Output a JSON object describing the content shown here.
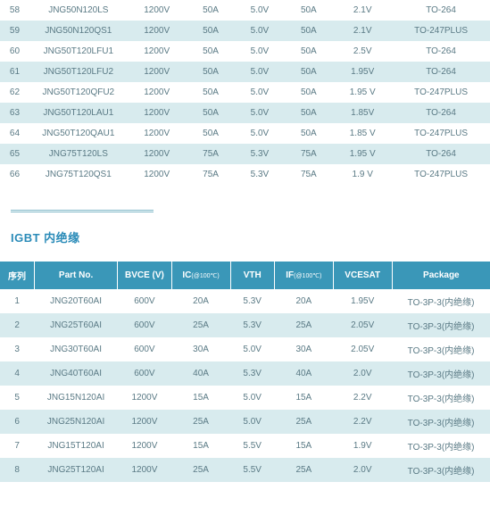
{
  "table1": {
    "rows": [
      {
        "n": "58",
        "part": "JNG50N120LS",
        "bvce": "1200V",
        "ic": "50A",
        "vth": "5.0V",
        "if": "50A",
        "vcesat": "2.1V",
        "pkg": "TO-264"
      },
      {
        "n": "59",
        "part": "JNG50N120QS1",
        "bvce": "1200V",
        "ic": "50A",
        "vth": "5.0V",
        "if": "50A",
        "vcesat": "2.1V",
        "pkg": "TO-247PLUS"
      },
      {
        "n": "60",
        "part": "JNG50T120LFU1",
        "bvce": "1200V",
        "ic": "50A",
        "vth": "5.0V",
        "if": "50A",
        "vcesat": "2.5V",
        "pkg": "TO-264"
      },
      {
        "n": "61",
        "part": "JNG50T120LFU2",
        "bvce": "1200V",
        "ic": "50A",
        "vth": "5.0V",
        "if": "50A",
        "vcesat": "1.95V",
        "pkg": "TO-264"
      },
      {
        "n": "62",
        "part": "JNG50T120QFU2",
        "bvce": "1200V",
        "ic": "50A",
        "vth": "5.0V",
        "if": "50A",
        "vcesat": "1.95 V",
        "pkg": "TO-247PLUS"
      },
      {
        "n": "63",
        "part": "JNG50T120LAU1",
        "bvce": "1200V",
        "ic": "50A",
        "vth": "5.0V",
        "if": "50A",
        "vcesat": "1.85V",
        "pkg": "TO-264"
      },
      {
        "n": "64",
        "part": "JNG50T120QAU1",
        "bvce": "1200V",
        "ic": "50A",
        "vth": "5.0V",
        "if": "50A",
        "vcesat": "1.85 V",
        "pkg": "TO-247PLUS"
      },
      {
        "n": "65",
        "part": "JNG75T120LS",
        "bvce": "1200V",
        "ic": "75A",
        "vth": "5.3V",
        "if": "75A",
        "vcesat": "1.95 V",
        "pkg": "TO-264"
      },
      {
        "n": "66",
        "part": "JNG75T120QS1",
        "bvce": "1200V",
        "ic": "75A",
        "vth": "5.3V",
        "if": "75A",
        "vcesat": "1.9 V",
        "pkg": "TO-247PLUS"
      }
    ]
  },
  "section": {
    "title": "IGBT 内绝缘"
  },
  "table2": {
    "headers": {
      "seq": "序列",
      "part": "Part No.",
      "bvce": "BVCE (V)",
      "ic": "IC",
      "ic_sub": "(@100℃)",
      "vth": "VTH",
      "if": "IF",
      "if_sub": "(@100℃)",
      "vcesat": "VCESAT",
      "pkg": "Package"
    },
    "rows": [
      {
        "n": "1",
        "part": "JNG20T60AI",
        "bvce": "600V",
        "ic": "20A",
        "vth": "5.3V",
        "if": "20A",
        "vcesat": "1.95V",
        "pkg": "TO-3P-3(内绝缘)"
      },
      {
        "n": "2",
        "part": "JNG25T60AI",
        "bvce": "600V",
        "ic": "25A",
        "vth": "5.3V",
        "if": "25A",
        "vcesat": "2.05V",
        "pkg": "TO-3P-3(内绝缘)"
      },
      {
        "n": "3",
        "part": "JNG30T60AI",
        "bvce": "600V",
        "ic": "30A",
        "vth": "5.0V",
        "if": "30A",
        "vcesat": "2.05V",
        "pkg": "TO-3P-3(内绝缘)"
      },
      {
        "n": "4",
        "part": "JNG40T60AI",
        "bvce": "600V",
        "ic": "40A",
        "vth": "5.3V",
        "if": "40A",
        "vcesat": "2.0V",
        "pkg": "TO-3P-3(内绝缘)"
      },
      {
        "n": "5",
        "part": "JNG15N120AI",
        "bvce": "1200V",
        "ic": "15A",
        "vth": "5.0V",
        "if": "15A",
        "vcesat": "2.2V",
        "pkg": "TO-3P-3(内绝缘)"
      },
      {
        "n": "6",
        "part": "JNG25N120AI",
        "bvce": "1200V",
        "ic": "25A",
        "vth": "5.0V",
        "if": "25A",
        "vcesat": "2.2V",
        "pkg": "TO-3P-3(内绝缘)"
      },
      {
        "n": "7",
        "part": "JNG15T120AI",
        "bvce": "1200V",
        "ic": "15A",
        "vth": "5.5V",
        "if": "15A",
        "vcesat": "1.9V",
        "pkg": "TO-3P-3(内绝缘)"
      },
      {
        "n": "8",
        "part": "JNG25T120AI",
        "bvce": "1200V",
        "ic": "25A",
        "vth": "5.5V",
        "if": "25A",
        "vcesat": "2.0V",
        "pkg": "TO-3P-3(内绝缘)"
      }
    ]
  }
}
